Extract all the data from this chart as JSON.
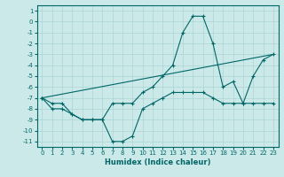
{
  "xlabel": "Humidex (Indice chaleur)",
  "background_color": "#cce9e9",
  "grid_color": "#aad4d4",
  "line_color": "#006666",
  "spine_color": "#006666",
  "xlim": [
    -0.5,
    23.5
  ],
  "ylim": [
    -11.5,
    1.5
  ],
  "xticks": [
    0,
    1,
    2,
    3,
    4,
    5,
    6,
    7,
    8,
    9,
    10,
    11,
    12,
    13,
    14,
    15,
    16,
    17,
    18,
    19,
    20,
    21,
    22,
    23
  ],
  "yticks": [
    1,
    0,
    -1,
    -2,
    -3,
    -4,
    -5,
    -6,
    -7,
    -8,
    -9,
    -10,
    -11
  ],
  "series": [
    {
      "x": [
        0,
        1,
        2,
        3,
        4,
        5,
        6,
        7,
        8,
        9,
        10,
        11,
        12,
        13,
        14,
        15,
        16,
        17,
        18,
        19,
        20,
        21,
        22,
        23
      ],
      "y": [
        -7.0,
        -8.0,
        -8.0,
        -8.5,
        -9.0,
        -9.0,
        -9.0,
        -11.0,
        -11.0,
        -10.5,
        -8.0,
        -7.5,
        -7.0,
        -6.5,
        -6.5,
        -6.5,
        -6.5,
        -7.0,
        -7.5,
        -7.5,
        -7.5,
        -7.5,
        -7.5,
        -7.5
      ],
      "marker": "+"
    },
    {
      "x": [
        0,
        1,
        2,
        3,
        4,
        5,
        6,
        7,
        8,
        9,
        10,
        11,
        12,
        13,
        14,
        15,
        16,
        17,
        18,
        19,
        20,
        21,
        22,
        23
      ],
      "y": [
        -7.0,
        -7.5,
        -7.5,
        -8.5,
        -9.0,
        -9.0,
        -9.0,
        -7.5,
        -7.5,
        -7.5,
        -6.5,
        -6.0,
        -5.0,
        -4.0,
        -1.0,
        0.5,
        0.5,
        -2.0,
        -6.0,
        -5.5,
        -7.5,
        -5.0,
        -3.5,
        -3.0
      ],
      "marker": "+"
    },
    {
      "x": [
        0,
        23
      ],
      "y": [
        -7.0,
        -3.0
      ],
      "marker": null
    }
  ],
  "tick_labelsize": 5,
  "xlabel_fontsize": 6,
  "linewidth": 0.8,
  "markersize": 3
}
